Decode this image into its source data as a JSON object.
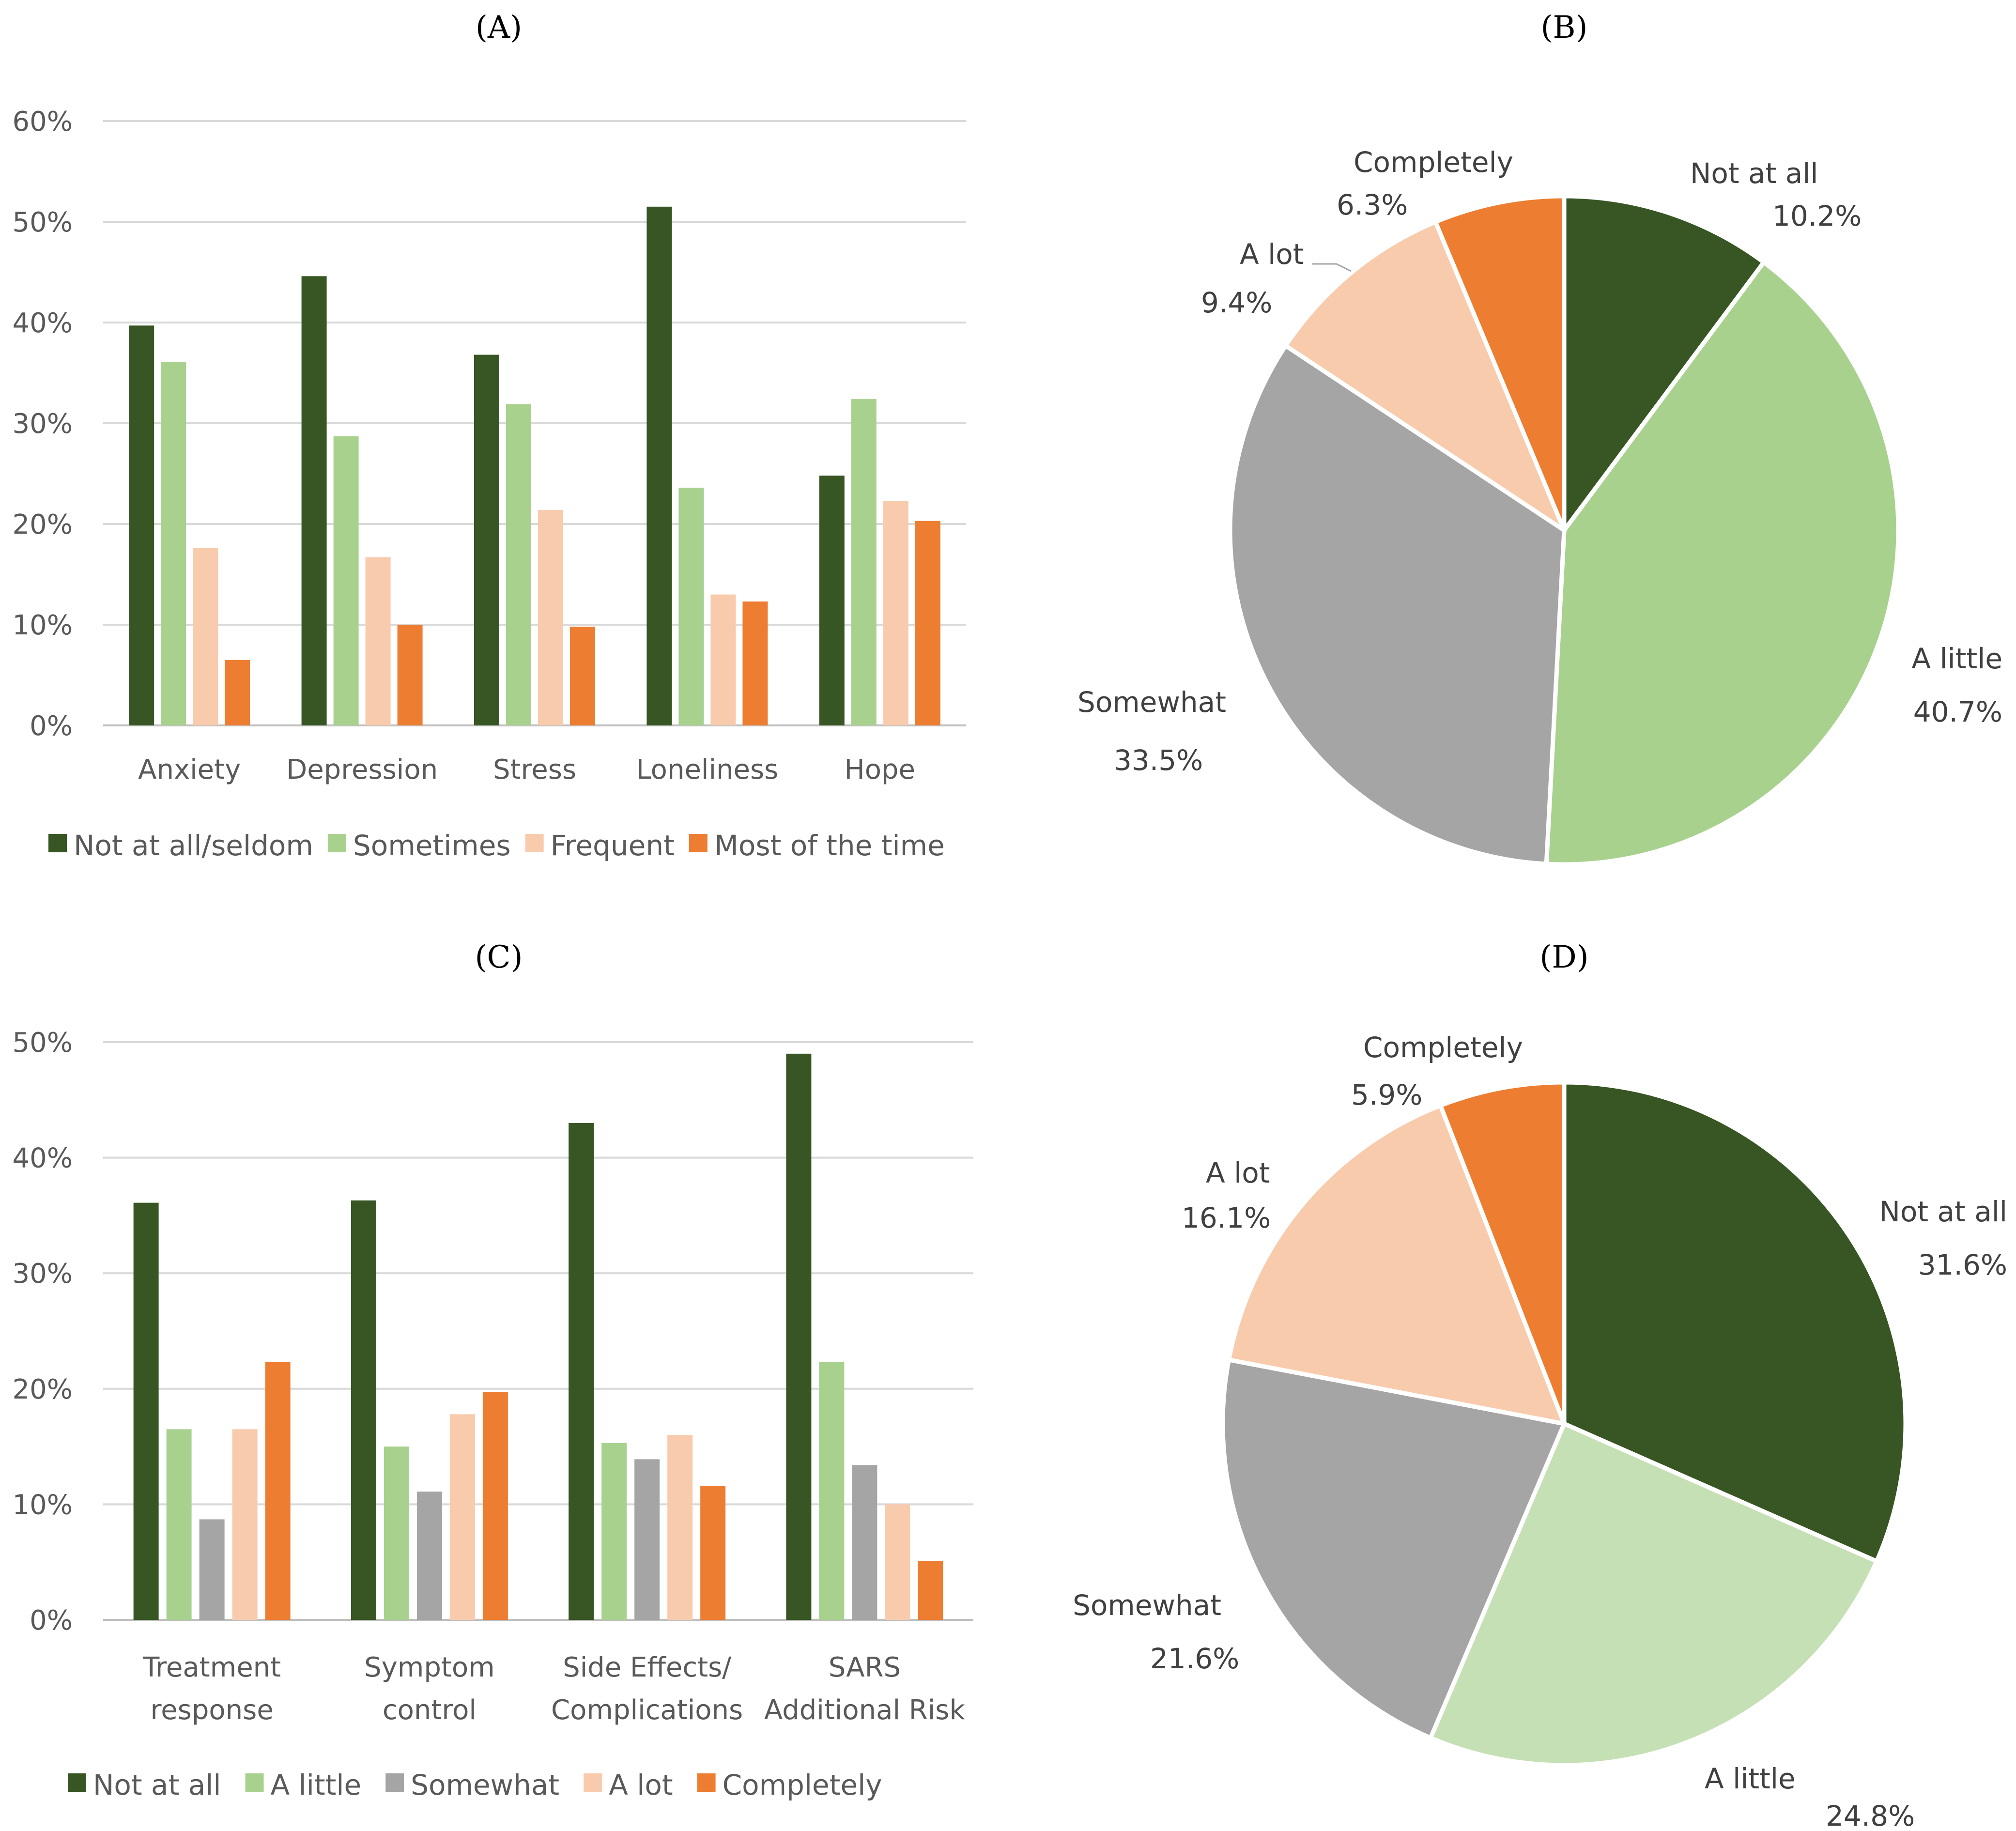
{
  "chart_data": [
    {
      "panel": "(A)",
      "type": "bar",
      "categories": [
        "Anxiety",
        "Depression",
        "Stress",
        "Loneliness",
        "Hope"
      ],
      "series": [
        {
          "name": "Not at all/seldom",
          "color": "#375623",
          "values": [
            39.7,
            44.6,
            36.8,
            51.5,
            24.8
          ]
        },
        {
          "name": "Sometimes",
          "color": "#a9d18e",
          "values": [
            36.1,
            28.7,
            31.9,
            23.6,
            32.4
          ]
        },
        {
          "name": "Frequent",
          "color": "#f8cbad",
          "values": [
            17.6,
            16.7,
            21.4,
            13.0,
            22.3
          ]
        },
        {
          "name": "Most of the time",
          "color": "#ed7d31",
          "values": [
            6.5,
            10.0,
            9.8,
            12.3,
            20.3
          ]
        }
      ],
      "yticks": [
        "0%",
        "10%",
        "20%",
        "30%",
        "40%",
        "50%",
        "60%"
      ],
      "ylim": [
        0,
        60
      ],
      "grid": true,
      "legend": "bottom"
    },
    {
      "panel": "(B)",
      "type": "pie",
      "slices": [
        {
          "label": "Not at all",
          "pct": "10.2%",
          "value": 10.2,
          "color": "#375623"
        },
        {
          "label": "A little",
          "pct": "40.7%",
          "value": 40.7,
          "color": "#a9d18e"
        },
        {
          "label": "Somewhat",
          "pct": "33.5%",
          "value": 33.5,
          "color": "#a5a5a5"
        },
        {
          "label": "A lot",
          "pct": "9.4%",
          "value": 9.4,
          "color": "#f8cbad"
        },
        {
          "label": "Completely",
          "pct": "6.3%",
          "value": 6.3,
          "color": "#ed7d31"
        }
      ]
    },
    {
      "panel": "(C)",
      "type": "bar",
      "categories": [
        [
          "Treatment",
          "response"
        ],
        [
          "Symptom",
          "control"
        ],
        [
          "Side Effects/",
          "Complications"
        ],
        [
          "SARS",
          "Additional Risk"
        ]
      ],
      "series": [
        {
          "name": "Not at all",
          "color": "#375623",
          "values": [
            36.1,
            36.3,
            43.0,
            49.0
          ]
        },
        {
          "name": "A little",
          "color": "#a9d18e",
          "values": [
            16.5,
            15.0,
            15.3,
            22.3
          ]
        },
        {
          "name": "Somewhat",
          "color": "#a5a5a5",
          "values": [
            8.7,
            11.1,
            13.9,
            13.4
          ]
        },
        {
          "name": "A lot",
          "color": "#f8cbad",
          "values": [
            16.5,
            17.8,
            16.0,
            10.0
          ]
        },
        {
          "name": "Completely",
          "color": "#ed7d31",
          "values": [
            22.3,
            19.7,
            11.6,
            5.1
          ]
        }
      ],
      "yticks": [
        "0%",
        "10%",
        "20%",
        "30%",
        "40%",
        "50%"
      ],
      "ylim": [
        0,
        50
      ],
      "grid": true,
      "legend": "bottom"
    },
    {
      "panel": "(D)",
      "type": "pie",
      "slices": [
        {
          "label": "Not at all",
          "pct": "31.6%",
          "value": 31.6,
          "color": "#375623"
        },
        {
          "label": "A little",
          "pct": "24.8%",
          "value": 24.8,
          "color": "#c5e0b4"
        },
        {
          "label": "Somewhat",
          "pct": "21.6%",
          "value": 21.6,
          "color": "#a5a5a5"
        },
        {
          "label": "A lot",
          "pct": "16.1%",
          "value": 16.1,
          "color": "#f8cbad"
        },
        {
          "label": "Completely",
          "pct": "5.9%",
          "value": 5.9,
          "color": "#ed7d31"
        }
      ]
    }
  ]
}
